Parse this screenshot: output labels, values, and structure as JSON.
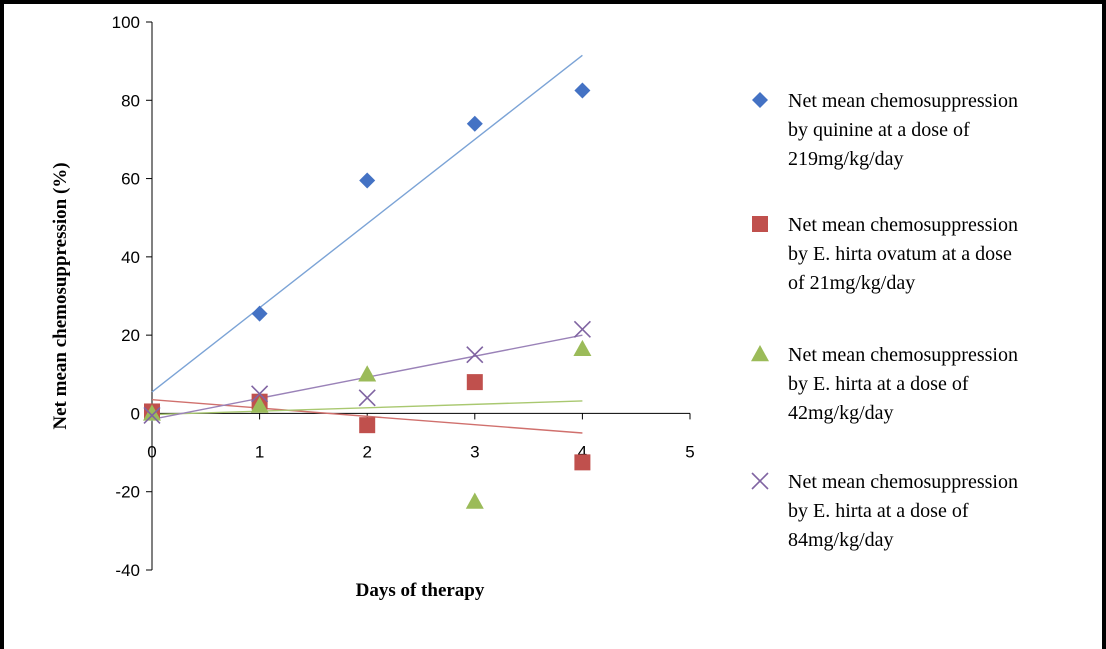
{
  "chart_data": {
    "type": "scatter",
    "xlabel": "Days of therapy",
    "ylabel": "Net mean chemosuppression  (%)",
    "xlim": [
      0,
      5
    ],
    "ylim": [
      -40,
      100
    ],
    "x_ticks": [
      0,
      1,
      2,
      3,
      4,
      5
    ],
    "y_ticks": [
      -40,
      -20,
      0,
      20,
      40,
      60,
      80,
      100
    ],
    "grid": false,
    "legend_position": "right",
    "series": [
      {
        "name_lines": [
          "Net mean chemosuppression",
          "by quinine at a dose of",
          "219mg/kg/day"
        ],
        "marker": "diamond",
        "color": "#4472C4",
        "trend_color": "#7BA3D6",
        "x": [
          0,
          1,
          2,
          3,
          4
        ],
        "y": [
          0,
          25.5,
          59.5,
          74,
          82.5
        ],
        "trendline": [
          [
            0,
            5.5
          ],
          [
            4,
            91.5
          ]
        ]
      },
      {
        "name_lines": [
          "Net mean chemosuppression",
          "by E. hirta ovatum at a dose",
          "of 21mg/kg/day"
        ],
        "marker": "square",
        "color": "#C0504D",
        "trend_color": "#D0706D",
        "x": [
          0,
          1,
          2,
          3,
          4
        ],
        "y": [
          0.5,
          3,
          -3,
          8,
          -12.5
        ],
        "trendline": [
          [
            0,
            3.5
          ],
          [
            4,
            -5
          ]
        ]
      },
      {
        "name_lines": [
          "Net mean chemosuppression",
          "by E. hirta at a dose of",
          "42mg/kg/day"
        ],
        "marker": "triangle",
        "color": "#9BBB59",
        "trend_color": "#A9C870",
        "x": [
          0,
          1,
          2,
          3,
          4
        ],
        "y": [
          0,
          2,
          10,
          -22.5,
          16.5
        ],
        "trendline": [
          [
            0,
            -0.3
          ],
          [
            4,
            3.2
          ]
        ]
      },
      {
        "name_lines": [
          "Net mean chemosuppression",
          "by E. hirta at a dose of",
          "84mg/kg/day"
        ],
        "marker": "x",
        "color": "#8064A2",
        "trend_color": "#9A82B8",
        "x": [
          0,
          1,
          2,
          3,
          4
        ],
        "y": [
          -0.5,
          5,
          4,
          15,
          21.5
        ],
        "trendline": [
          [
            0,
            -1.5
          ],
          [
            4,
            20
          ]
        ]
      }
    ]
  }
}
